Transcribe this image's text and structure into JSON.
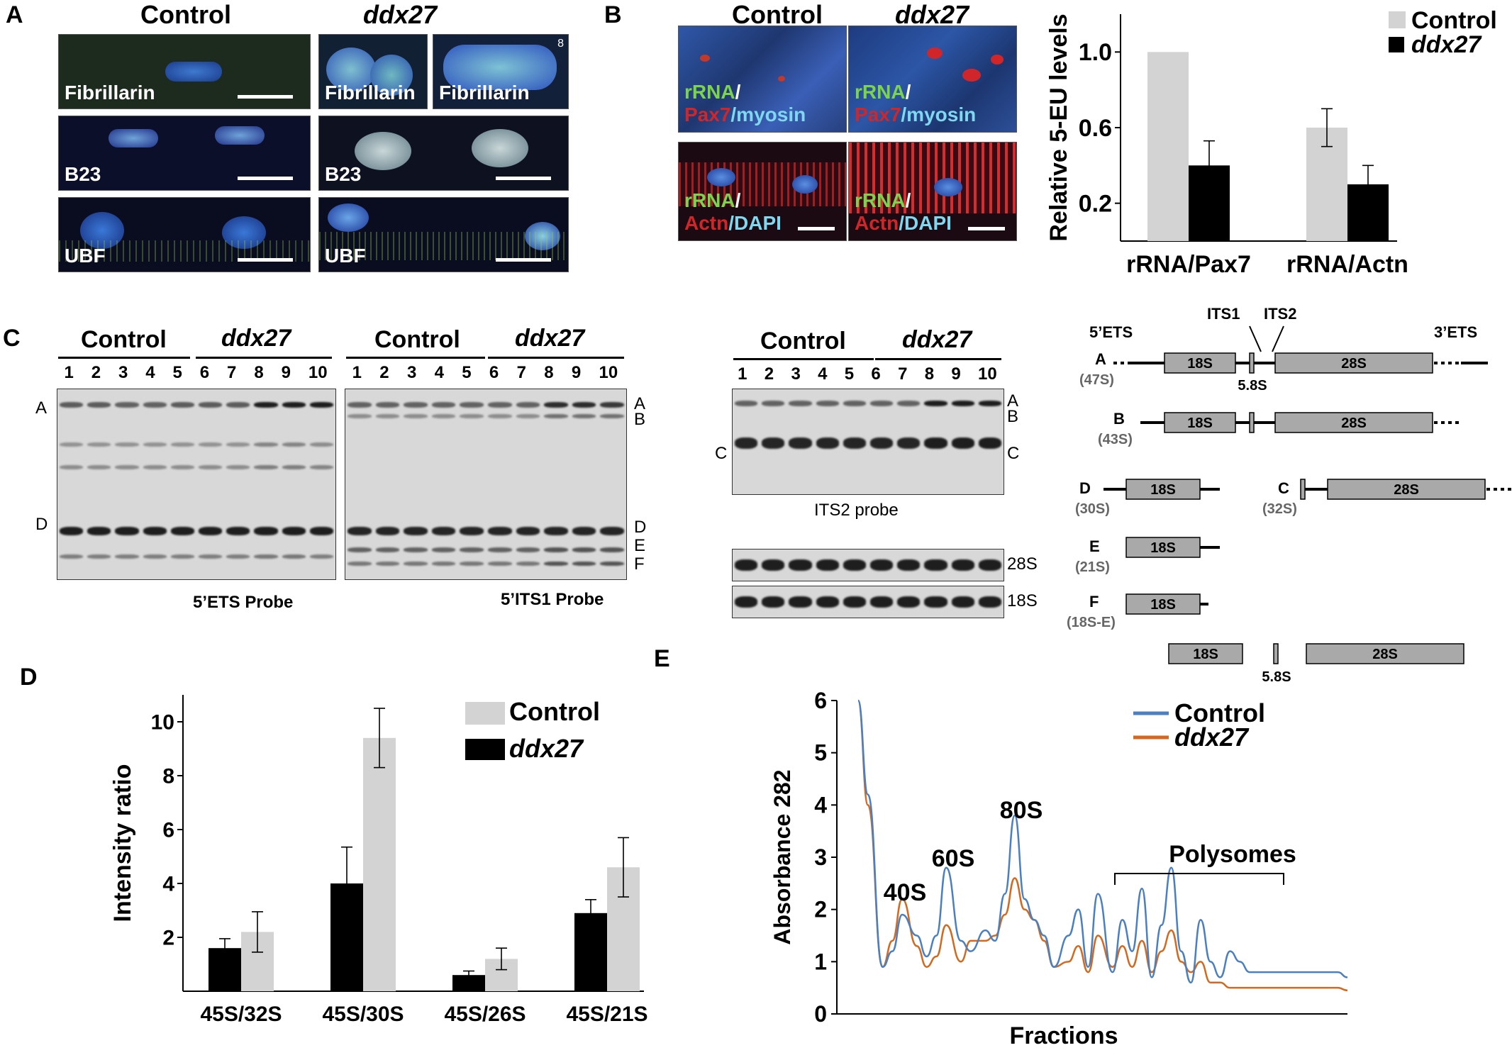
{
  "panels": {
    "A": {
      "letter": "A",
      "control": "Control",
      "mutant": "ddx27",
      "tiles": {
        "fib_ctrl": "Fibrillarin",
        "fib_mut1": "Fibrillarin",
        "fib_mut2": "Fibrillarin",
        "b23_ctrl": "B23",
        "b23_mut": "B23",
        "ubf_ctrl": "UBF",
        "ubf_mut": "UBF"
      },
      "corner_mark": "8"
    },
    "B": {
      "letter": "B",
      "control": "Control",
      "mutant": "ddx27",
      "stain_top": {
        "rrna": "rRNA",
        "slash": "/",
        "pax7": "Pax7",
        "myosin": "/myosin"
      },
      "stain_bottom": {
        "rrna": "rRNA",
        "slash": "/",
        "actn": "Actn",
        "dapi": "/DAPI"
      }
    },
    "C": {
      "letter": "C",
      "gel1": {
        "control": "Control",
        "mutant": "ddx27",
        "lanes": [
          "1",
          "2",
          "3",
          "4",
          "5",
          "6",
          "7",
          "8",
          "9",
          "10"
        ],
        "caption": "5’ETS Probe",
        "left_labels": [
          "A",
          "D"
        ]
      },
      "gel2": {
        "control": "Control",
        "mutant": "ddx27",
        "lanes": [
          "1",
          "2",
          "3",
          "4",
          "5",
          "6",
          "7",
          "8",
          "9",
          "10"
        ],
        "caption": "5’ITS1 Probe",
        "right_labels": [
          "A",
          "B",
          "D",
          "E",
          "F"
        ]
      },
      "gel3": {
        "control": "Control",
        "mutant": "ddx27",
        "lanes": [
          "1",
          "2",
          "3",
          "4",
          "5",
          "6",
          "7",
          "8",
          "9",
          "10"
        ],
        "caption": "ITS2 probe",
        "left_labels": [
          "C"
        ],
        "right_labels": [
          "A",
          "B",
          "C"
        ]
      },
      "loading": {
        "top": "28S",
        "bottom": "18S"
      },
      "schematic": {
        "headers": {
          "ets5": "5’ETS",
          "its1": "ITS1",
          "its2": "ITS2",
          "ets3": "3’ETS"
        },
        "rows": [
          {
            "letter": "A",
            "size": "(47S)"
          },
          {
            "letter": "B",
            "size": "(43S)"
          },
          {
            "letter": "D",
            "size": "(30S)"
          },
          {
            "letter": "C",
            "size": "(32S)"
          },
          {
            "letter": "E",
            "size": "(21S)"
          },
          {
            "letter": "F",
            "size": "(18S-E)"
          }
        ],
        "labels": {
          "s18": "18S",
          "s28": "28S",
          "s58": "5.8S"
        }
      }
    },
    "D": {
      "letter": "D"
    },
    "E": {
      "letter": "E"
    }
  },
  "colors": {
    "control_gray": "#d3d3d3",
    "ddx27_black": "#000000",
    "line_control": "#4a7fc1",
    "line_ddx27": "#d2691e",
    "box_fill": "#a9a9a9"
  },
  "chart_data": [
    {
      "id": "panelB",
      "type": "bar",
      "ylabel": "Relative 5-EU levels",
      "xlabel": "",
      "categories": [
        "rRNA/Pax7",
        "rRNA/Actn"
      ],
      "yticks": [
        "0.2",
        "0.6",
        "1.0"
      ],
      "ylim": [
        0,
        1.2
      ],
      "legend_position": "top-right",
      "series": [
        {
          "name": "Control",
          "values": [
            1.0,
            0.6
          ],
          "errors": [
            0,
            0.1
          ],
          "color": "#d3d3d3"
        },
        {
          "name": "ddx27",
          "values": [
            0.4,
            0.3
          ],
          "errors": [
            0.13,
            0.1
          ],
          "color": "#000000"
        }
      ]
    },
    {
      "id": "panelD",
      "type": "bar",
      "ylabel": "Intensity ratio",
      "xlabel": "",
      "categories": [
        "45S/32S",
        "45S/30S",
        "45S/26S",
        "45S/21S"
      ],
      "yticks": [
        "2",
        "4",
        "6",
        "8",
        "10"
      ],
      "ylim": [
        0,
        11
      ],
      "legend_position": "top-right",
      "series": [
        {
          "name": "ddx27",
          "values": [
            1.6,
            4.0,
            0.6,
            2.9
          ],
          "errors": [
            0.35,
            1.35,
            0.15,
            0.5
          ],
          "color": "#000000"
        },
        {
          "name": "Control",
          "values": [
            2.2,
            9.4,
            1.2,
            4.6
          ],
          "errors": [
            0.75,
            1.1,
            0.4,
            1.1
          ],
          "color": "#d3d3d3"
        }
      ]
    },
    {
      "id": "panelE",
      "type": "line",
      "ylabel": "Absorbance 282",
      "xlabel": "Fractions",
      "yticks": [
        "0",
        "1",
        "2",
        "3",
        "4",
        "5",
        "6"
      ],
      "ylim": [
        0,
        6
      ],
      "xlim": [
        0,
        100
      ],
      "annotations": [
        "40S",
        "60S",
        "80S",
        "Polysomes"
      ],
      "legend_position": "top-right",
      "series": [
        {
          "name": "Control",
          "color": "#4a7fc1",
          "x": [
            0,
            2,
            5,
            7,
            9,
            12,
            14,
            16,
            18,
            21,
            23,
            26,
            28,
            30,
            32,
            34,
            36,
            38,
            40,
            43,
            45,
            47,
            49,
            52,
            54,
            56,
            58,
            60,
            62,
            64,
            66,
            68,
            70,
            72,
            74,
            76,
            78,
            80,
            82,
            84,
            86,
            88,
            90,
            92,
            94,
            96,
            98,
            100
          ],
          "y": [
            6.0,
            4.2,
            0.9,
            1.2,
            1.9,
            1.5,
            1.1,
            1.5,
            2.8,
            1.4,
            1.2,
            1.6,
            1.4,
            2.3,
            3.8,
            2.2,
            1.8,
            1.5,
            0.9,
            1.5,
            2.0,
            0.9,
            2.3,
            0.8,
            1.8,
            1.2,
            2.4,
            0.7,
            1.7,
            2.8,
            1.2,
            0.6,
            1.8,
            1.0,
            0.7,
            1.2,
            1.0,
            0.8,
            0.8,
            0.8,
            0.8,
            0.8,
            0.8,
            0.8,
            0.8,
            0.8,
            0.8,
            0.7
          ]
        },
        {
          "name": "ddx27",
          "color": "#d2691e",
          "x": [
            0,
            2,
            5,
            7,
            9,
            12,
            14,
            16,
            18,
            21,
            23,
            26,
            28,
            30,
            32,
            34,
            36,
            38,
            40,
            43,
            45,
            47,
            49,
            52,
            54,
            56,
            58,
            60,
            62,
            64,
            66,
            68,
            70,
            72,
            74,
            76,
            78,
            80,
            82,
            84,
            86,
            88,
            90,
            92,
            94,
            96,
            98,
            100
          ],
          "y": [
            6.0,
            4.0,
            0.9,
            1.4,
            2.2,
            1.3,
            0.9,
            1.1,
            1.7,
            1.0,
            1.4,
            1.4,
            1.5,
            1.9,
            2.6,
            2.0,
            1.8,
            1.4,
            0.9,
            1.0,
            1.3,
            0.8,
            1.5,
            0.9,
            1.3,
            0.9,
            1.4,
            0.8,
            1.2,
            1.6,
            1.0,
            0.8,
            1.0,
            0.6,
            0.6,
            0.5,
            0.5,
            0.5,
            0.5,
            0.5,
            0.5,
            0.5,
            0.5,
            0.5,
            0.5,
            0.5,
            0.5,
            0.45
          ]
        }
      ]
    }
  ]
}
